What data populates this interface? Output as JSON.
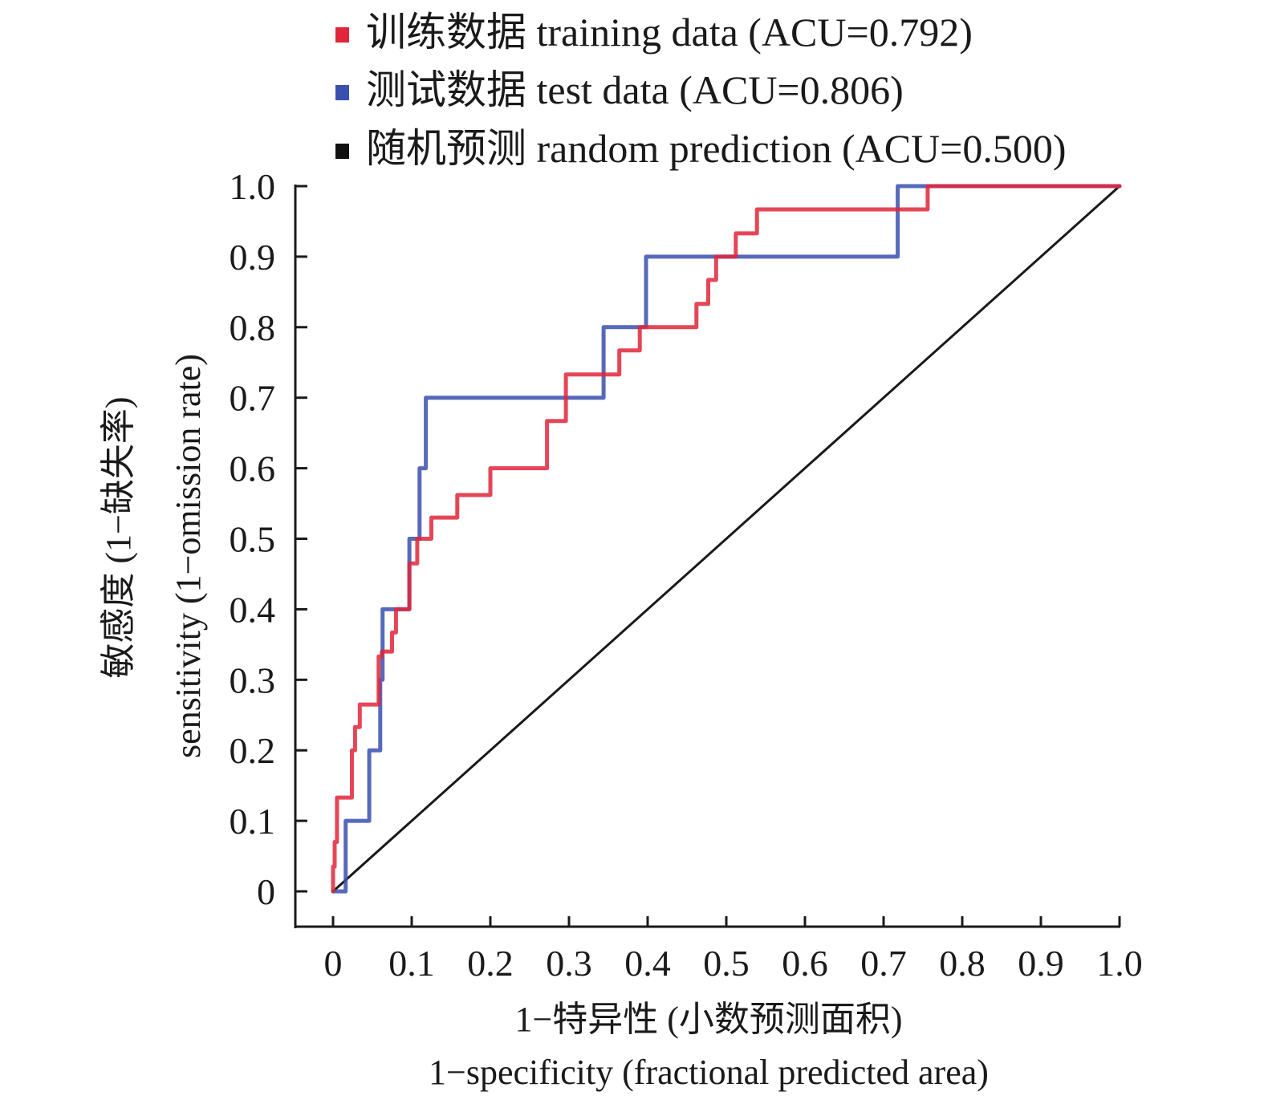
{
  "chart_data": {
    "type": "line",
    "title": "",
    "xlabel": [
      "1−特异性 (小数预测面积)",
      "1−specificity (fractional predicted area)"
    ],
    "ylabel": [
      "敏感度 (1−缺失率)",
      "sensitivity (1−omission rate)"
    ],
    "xlim": [
      0,
      1
    ],
    "ylim": [
      0,
      1
    ],
    "grid": false,
    "legend_position": "top",
    "x_ticks": [
      0,
      0.1,
      0.2,
      0.3,
      0.4,
      0.5,
      0.6,
      0.7,
      0.8,
      0.9,
      1.0
    ],
    "x_tick_labels": [
      "0",
      "0.1",
      "0.2",
      "0.3",
      "0.4",
      "0.5",
      "0.6",
      "0.7",
      "0.8",
      "0.9",
      "1.0"
    ],
    "y_ticks": [
      0,
      0.1,
      0.2,
      0.3,
      0.4,
      0.5,
      0.6,
      0.7,
      0.8,
      0.9,
      1.0
    ],
    "y_tick_labels": [
      "0",
      "0.1",
      "0.2",
      "0.3",
      "0.4",
      "0.5",
      "0.6",
      "0.7",
      "0.8",
      "0.9",
      "1.0"
    ],
    "series": [
      {
        "name": "训练数据 training data (ACU=0.792)",
        "color": "#e0263a",
        "step": true,
        "x": [
          0,
          0,
          0.002,
          0.002,
          0.005,
          0.005,
          0.024,
          0.024,
          0.028,
          0.028,
          0.034,
          0.034,
          0.058,
          0.058,
          0.062,
          0.062,
          0.075,
          0.075,
          0.08,
          0.08,
          0.09,
          0.09,
          0.097,
          0.097,
          0.107,
          0.107,
          0.125,
          0.125,
          0.158,
          0.158,
          0.2,
          0.2,
          0.272,
          0.272,
          0.296,
          0.296,
          0.364,
          0.364,
          0.39,
          0.39,
          0.462,
          0.462,
          0.477,
          0.477,
          0.487,
          0.487,
          0.512,
          0.512,
          0.539,
          0.539,
          0.756,
          0.756,
          1.0
        ],
        "y": [
          0,
          0.035,
          0.035,
          0.07,
          0.07,
          0.133,
          0.133,
          0.2,
          0.2,
          0.233,
          0.233,
          0.265,
          0.265,
          0.333,
          0.333,
          0.34,
          0.34,
          0.367,
          0.367,
          0.4,
          0.4,
          0.4,
          0.4,
          0.465,
          0.465,
          0.5,
          0.5,
          0.53,
          0.53,
          0.562,
          0.562,
          0.6,
          0.6,
          0.667,
          0.667,
          0.733,
          0.733,
          0.767,
          0.767,
          0.8,
          0.8,
          0.833,
          0.833,
          0.867,
          0.867,
          0.9,
          0.9,
          0.933,
          0.933,
          0.967,
          0.967,
          1.0,
          1.0
        ]
      },
      {
        "name": "测试数据 test data (ACU=0.806)",
        "color": "#3a4fae",
        "step": true,
        "x": [
          0,
          0.016,
          0.016,
          0.046,
          0.046,
          0.06,
          0.06,
          0.063,
          0.063,
          0.066,
          0.066,
          0.097,
          0.097,
          0.11,
          0.11,
          0.118,
          0.118,
          0.344,
          0.344,
          0.398,
          0.398,
          0.718,
          0.718,
          1.0
        ],
        "y": [
          0,
          0,
          0.1,
          0.1,
          0.2,
          0.2,
          0.3,
          0.3,
          0.4,
          0.4,
          0.4,
          0.4,
          0.5,
          0.5,
          0.6,
          0.6,
          0.7,
          0.7,
          0.8,
          0.8,
          0.9,
          0.9,
          1.0,
          1.0
        ]
      },
      {
        "name": "随机预测 random prediction (ACU=0.500)",
        "color": "#1a1a1a",
        "step": false,
        "x": [
          0,
          1.0
        ],
        "y": [
          0,
          1.0
        ]
      }
    ]
  },
  "legend": [
    {
      "label": "训练数据 training data (ACU=0.792)",
      "color": "#e0263a"
    },
    {
      "label": "测试数据 test data (ACU=0.806)",
      "color": "#3a4fae"
    },
    {
      "label": "随机预测 random prediction (ACU=0.500)",
      "color": "#1a1a1a"
    }
  ],
  "axes": {
    "ylabel_cn": "敏感度 (1−缺失率)",
    "ylabel_en": "sensitivity (1−omission rate)",
    "xlabel_cn": "1−特异性 (小数预测面积)",
    "xlabel_en": "1−specificity (fractional predicted area)"
  }
}
